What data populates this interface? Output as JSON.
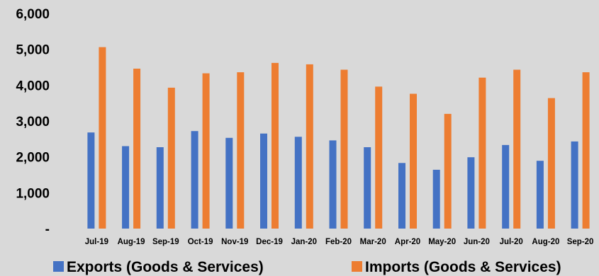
{
  "chart_data": {
    "type": "bar",
    "categories": [
      "Jul-19",
      "Aug-19",
      "Sep-19",
      "Oct-19",
      "Nov-19",
      "Dec-19",
      "Jan-20",
      "Feb-20",
      "Mar-20",
      "Apr-20",
      "May-20",
      "Jun-20",
      "Jul-20",
      "Aug-20",
      "Sep-20"
    ],
    "series": [
      {
        "name": "Exports (Goods & Services)",
        "color": "#4472c4",
        "values": [
          2680,
          2300,
          2270,
          2720,
          2530,
          2650,
          2560,
          2460,
          2270,
          1830,
          1640,
          1990,
          2330,
          1890,
          2430
        ]
      },
      {
        "name": "Imports (Goods & Services)",
        "color": "#ed7d31",
        "values": [
          5060,
          4460,
          3930,
          4330,
          4360,
          4620,
          4580,
          4430,
          3960,
          3760,
          3200,
          4210,
          4430,
          3640,
          4360
        ]
      }
    ],
    "ylim": [
      0,
      6000
    ],
    "yticks": [
      0,
      1000,
      2000,
      3000,
      4000,
      5000,
      6000
    ],
    "ytick_labels": [
      "-",
      "1,000",
      "2,000",
      "3,000",
      "4,000",
      "5,000",
      "6,000"
    ],
    "title": "",
    "xlabel": "",
    "ylabel": "",
    "grid": false,
    "legend_position": "bottom",
    "background": "#d9d9d9"
  }
}
